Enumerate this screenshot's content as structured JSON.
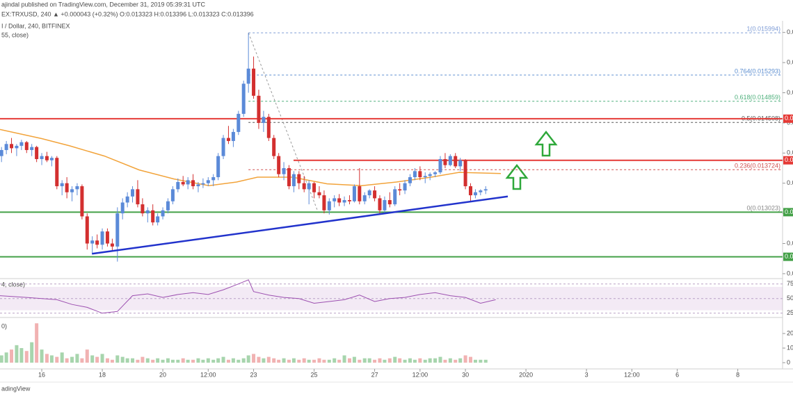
{
  "header": {
    "publisher": "ajindal published on TradingView.com, December 31, 2019 05:39:31 UTC",
    "symbol_line": "EX:TRXUSD, 240  ▲ +0.000043 (+0.32%)  O:0.013323  H:0.013396  L:0.013323  C:0.013396"
  },
  "chart_data": {
    "type": "candlestick",
    "title": "I / Dollar, 240, BITFINEX",
    "subtitle": "55, close)",
    "up_color": "#5b8ad8",
    "down_color": "#d32f2f",
    "xlim": [
      14.62,
      40.48
    ],
    "xticks": [
      16,
      18,
      20,
      {
        "value": 21.5,
        "label": "12:00"
      },
      23,
      25,
      27,
      {
        "value": 28.5,
        "label": "12:00"
      },
      30,
      {
        "value": 32,
        "label": "2020"
      },
      {
        "value": 34,
        "label": "3"
      },
      {
        "value": 35.5,
        "label": "12:00"
      },
      {
        "value": 37,
        "label": "6"
      },
      {
        "value": 39,
        "label": "8"
      }
    ],
    "ylim": [
      0.01193,
      0.0161
    ],
    "yticks": [
      {
        "value": 0.012,
        "label": "0.0"
      },
      {
        "value": 0.0125,
        "label": "0.0"
      },
      {
        "value": 0.013,
        "label": "0.0"
      },
      {
        "value": 0.0135,
        "label": "0.0"
      },
      {
        "value": 0.014,
        "label": "0.0"
      },
      {
        "value": 0.0145,
        "label": "0.0"
      },
      {
        "value": 0.015,
        "label": "0.0"
      },
      {
        "value": 0.0155,
        "label": "0.0"
      },
      {
        "value": 0.016,
        "label": "0.0"
      }
    ],
    "candles": [
      [
        14.67,
        0.01395,
        0.0141,
        0.01385,
        0.01405
      ],
      [
        14.83,
        0.01405,
        0.0142,
        0.01398,
        0.01415
      ],
      [
        15.0,
        0.01415,
        0.01425,
        0.014,
        0.01408
      ],
      [
        15.17,
        0.01408,
        0.01415,
        0.01395,
        0.01412
      ],
      [
        15.33,
        0.01412,
        0.01422,
        0.01405,
        0.01418
      ],
      [
        15.5,
        0.01418,
        0.0142,
        0.014,
        0.01405
      ],
      [
        15.67,
        0.01405,
        0.01415,
        0.01395,
        0.0141
      ],
      [
        15.83,
        0.0141,
        0.01412,
        0.01385,
        0.0139
      ],
      [
        16.0,
        0.0139,
        0.014,
        0.0138,
        0.01395
      ],
      [
        16.17,
        0.01395,
        0.01402,
        0.01385,
        0.01388
      ],
      [
        16.33,
        0.01388,
        0.01395,
        0.01378,
        0.01392
      ],
      [
        16.5,
        0.01392,
        0.01395,
        0.0134,
        0.01345
      ],
      [
        16.67,
        0.01345,
        0.01355,
        0.0133,
        0.0135
      ],
      [
        16.83,
        0.0135,
        0.0136,
        0.01325,
        0.01335
      ],
      [
        17.0,
        0.01335,
        0.01345,
        0.0132,
        0.0134
      ],
      [
        17.17,
        0.0134,
        0.0135,
        0.0133,
        0.01345
      ],
      [
        17.33,
        0.01345,
        0.01348,
        0.0129,
        0.01295
      ],
      [
        17.5,
        0.01295,
        0.013,
        0.0124,
        0.0125
      ],
      [
        17.67,
        0.0125,
        0.01262,
        0.01232,
        0.01255
      ],
      [
        17.83,
        0.01255,
        0.01265,
        0.01242,
        0.01248
      ],
      [
        18.0,
        0.01248,
        0.01275,
        0.0124,
        0.0127
      ],
      [
        18.17,
        0.0127,
        0.01275,
        0.01245,
        0.0125
      ],
      [
        18.33,
        0.0125,
        0.01258,
        0.01238,
        0.01245
      ],
      [
        18.5,
        0.01245,
        0.0131,
        0.0122,
        0.013
      ],
      [
        18.67,
        0.013,
        0.01325,
        0.0129,
        0.01318
      ],
      [
        18.83,
        0.01318,
        0.01335,
        0.0131,
        0.01328
      ],
      [
        19.0,
        0.01328,
        0.01345,
        0.01318,
        0.0134
      ],
      [
        19.17,
        0.0134,
        0.01355,
        0.0131,
        0.01315
      ],
      [
        19.33,
        0.01315,
        0.01325,
        0.01295,
        0.013
      ],
      [
        19.5,
        0.013,
        0.0131,
        0.01285,
        0.01305
      ],
      [
        19.67,
        0.01305,
        0.01315,
        0.0128,
        0.01285
      ],
      [
        19.83,
        0.01285,
        0.013,
        0.0128,
        0.01295
      ],
      [
        20.0,
        0.01295,
        0.0131,
        0.0129,
        0.01305
      ],
      [
        20.17,
        0.01305,
        0.01325,
        0.013,
        0.0132
      ],
      [
        20.33,
        0.0132,
        0.01345,
        0.01315,
        0.0134
      ],
      [
        20.5,
        0.0134,
        0.01358,
        0.01335,
        0.01352
      ],
      [
        20.67,
        0.01352,
        0.01362,
        0.01345,
        0.01348
      ],
      [
        20.83,
        0.01348,
        0.0136,
        0.0134,
        0.01355
      ],
      [
        21.0,
        0.01355,
        0.01365,
        0.0134,
        0.01345
      ],
      [
        21.17,
        0.01345,
        0.01352,
        0.01335,
        0.01348
      ],
      [
        21.33,
        0.01348,
        0.01358,
        0.01342,
        0.0135
      ],
      [
        21.5,
        0.0135,
        0.0136,
        0.01345,
        0.01355
      ],
      [
        21.67,
        0.01355,
        0.01365,
        0.01345,
        0.0136
      ],
      [
        21.83,
        0.0136,
        0.014,
        0.01355,
        0.01395
      ],
      [
        22.0,
        0.01395,
        0.0143,
        0.0139,
        0.01425
      ],
      [
        22.17,
        0.01425,
        0.01445,
        0.01415,
        0.0142
      ],
      [
        22.33,
        0.0142,
        0.0144,
        0.0141,
        0.01435
      ],
      [
        22.5,
        0.01435,
        0.0147,
        0.0143,
        0.01465
      ],
      [
        22.67,
        0.01465,
        0.0152,
        0.0146,
        0.01515
      ],
      [
        22.83,
        0.01515,
        0.01599,
        0.015,
        0.0154
      ],
      [
        23.0,
        0.0154,
        0.0156,
        0.0149,
        0.01495
      ],
      [
        23.17,
        0.01495,
        0.01505,
        0.0144,
        0.0145
      ],
      [
        23.33,
        0.0145,
        0.0147,
        0.01435,
        0.0146
      ],
      [
        23.5,
        0.0146,
        0.01465,
        0.0142,
        0.01425
      ],
      [
        23.67,
        0.01425,
        0.0143,
        0.0139,
        0.01395
      ],
      [
        23.83,
        0.01395,
        0.014,
        0.0136,
        0.01365
      ],
      [
        24.0,
        0.01365,
        0.01385,
        0.01355,
        0.01375
      ],
      [
        24.17,
        0.01375,
        0.0138,
        0.0134,
        0.01345
      ],
      [
        24.33,
        0.01345,
        0.0137,
        0.01335,
        0.01365
      ],
      [
        24.5,
        0.01365,
        0.0137,
        0.0134,
        0.0135
      ],
      [
        24.67,
        0.0135,
        0.01362,
        0.01335,
        0.0134
      ],
      [
        24.83,
        0.0134,
        0.01355,
        0.01315,
        0.0135
      ],
      [
        25.0,
        0.0135,
        0.01352,
        0.01325,
        0.01335
      ],
      [
        25.17,
        0.01335,
        0.01345,
        0.01325,
        0.0133
      ],
      [
        25.33,
        0.0133,
        0.01338,
        0.013,
        0.01305
      ],
      [
        25.5,
        0.01305,
        0.01325,
        0.01298,
        0.0132
      ],
      [
        25.67,
        0.0132,
        0.0133,
        0.0131,
        0.01325
      ],
      [
        25.83,
        0.01325,
        0.01332,
        0.01312,
        0.01318
      ],
      [
        26.0,
        0.01318,
        0.01328,
        0.01312,
        0.01322
      ],
      [
        26.17,
        0.01322,
        0.0133,
        0.01315,
        0.0132
      ],
      [
        26.33,
        0.0132,
        0.01348,
        0.01318,
        0.01345
      ],
      [
        26.5,
        0.01345,
        0.01375,
        0.01315,
        0.0132
      ],
      [
        26.67,
        0.0132,
        0.01335,
        0.01315,
        0.0133
      ],
      [
        26.83,
        0.0133,
        0.0134,
        0.01325,
        0.01338
      ],
      [
        27.0,
        0.01338,
        0.01345,
        0.0132,
        0.01325
      ],
      [
        27.17,
        0.01325,
        0.0133,
        0.013,
        0.01305
      ],
      [
        27.33,
        0.01305,
        0.01328,
        0.013,
        0.01322
      ],
      [
        27.5,
        0.01322,
        0.01335,
        0.0131,
        0.01315
      ],
      [
        27.67,
        0.01315,
        0.01345,
        0.01312,
        0.0134
      ],
      [
        27.83,
        0.0134,
        0.0135,
        0.0133,
        0.01338
      ],
      [
        28.0,
        0.01338,
        0.01355,
        0.01332,
        0.0135
      ],
      [
        28.17,
        0.0135,
        0.01365,
        0.01345,
        0.0136
      ],
      [
        28.33,
        0.0136,
        0.01375,
        0.01355,
        0.0137
      ],
      [
        28.5,
        0.0137,
        0.01378,
        0.01355,
        0.0136
      ],
      [
        28.67,
        0.0136,
        0.01368,
        0.0135,
        0.01362
      ],
      [
        28.83,
        0.01362,
        0.01368,
        0.01355,
        0.01365
      ],
      [
        29.0,
        0.01365,
        0.0137,
        0.0136,
        0.01368
      ],
      [
        29.17,
        0.01368,
        0.01395,
        0.01365,
        0.0139
      ],
      [
        29.33,
        0.0139,
        0.014,
        0.01375,
        0.0138
      ],
      [
        29.5,
        0.0138,
        0.01398,
        0.01378,
        0.01395
      ],
      [
        29.67,
        0.01395,
        0.014,
        0.01375,
        0.01378
      ],
      [
        29.83,
        0.01378,
        0.01392,
        0.0137,
        0.01388
      ],
      [
        30.0,
        0.01388,
        0.0139,
        0.0134,
        0.01345
      ],
      [
        30.17,
        0.01345,
        0.0135,
        0.0132,
        0.0133
      ],
      [
        30.33,
        0.0133,
        0.0134,
        0.01325,
        0.01335
      ],
      [
        30.5,
        0.01335,
        0.0134,
        0.0133,
        0.01338
      ],
      [
        30.67,
        0.01338,
        0.01345,
        0.01332,
        0.0134
      ]
    ],
    "ma": {
      "color": "#f2a33a",
      "x": [
        14.62,
        16,
        16.92,
        18.07,
        19.22,
        20.37,
        21.52,
        22.44,
        23.13,
        24.28,
        25.43,
        26.57,
        27.72,
        28.87,
        29.79,
        31.17
      ],
      "values": [
        0.01439,
        0.01424,
        0.01412,
        0.01395,
        0.01372,
        0.01357,
        0.01346,
        0.01352,
        0.0136,
        0.0136,
        0.01349,
        0.01346,
        0.01352,
        0.0136,
        0.01368,
        0.01366
      ]
    },
    "levels": [
      {
        "value": 0.01457,
        "color": "#e53935",
        "label": "0.0"
      },
      {
        "value": 0.01388,
        "color": "#e53935",
        "from": 24.32,
        "label": "0.0"
      },
      {
        "value": 0.01302,
        "color": "#43a047",
        "label": "0.0"
      },
      {
        "value": 0.01228,
        "color": "#43a047",
        "label": "0.0"
      }
    ],
    "fib": {
      "start": 22.83,
      "levels": [
        {
          "value": 0.015994,
          "label": "1(0.015994)",
          "color": "#7e9cd6"
        },
        {
          "value": 0.015293,
          "label": "0.764(0.015293)",
          "color": "#5c8ed0"
        },
        {
          "value": 0.014859,
          "label": "0.618(0.014859)",
          "color": "#4caf7a"
        },
        {
          "value": 0.014508,
          "label": "0.5(0.014508)",
          "color": "#555555"
        },
        {
          "value": 0.013724,
          "label": "0.236(0.013724)",
          "color": "#d05050"
        },
        {
          "value": 0.013023,
          "label": "0(0.013023)",
          "color": "#888888"
        }
      ]
    },
    "trendline": {
      "color": "#2233cc",
      "x": [
        17.66,
        31.4
      ],
      "values": [
        0.01233,
        0.01328
      ]
    },
    "rsi": {
      "label": "4, close)",
      "color": "#9c4fb0",
      "ylim": [
        20,
        83
      ],
      "yticks": [
        25,
        50,
        75
      ],
      "band": [
        30,
        70
      ],
      "x": [
        14.62,
        15.5,
        16.5,
        17,
        17.5,
        18,
        18.5,
        19,
        19.5,
        20,
        20.5,
        21,
        21.5,
        22,
        22.5,
        22.83,
        23,
        23.5,
        24,
        24.5,
        25,
        25.5,
        26,
        26.5,
        27,
        27.5,
        28,
        28.5,
        29,
        29.5,
        30,
        30.5,
        31
      ],
      "values": [
        55,
        52,
        48,
        40,
        35,
        25,
        28,
        55,
        58,
        52,
        57,
        60,
        57,
        65,
        75,
        82,
        62,
        56,
        52,
        50,
        42,
        45,
        48,
        56,
        45,
        50,
        52,
        57,
        60,
        55,
        52,
        42,
        48
      ]
    },
    "volume": {
      "label": "0)",
      "ylim": [
        -3.8,
        30.5
      ],
      "yticks": [
        0,
        10,
        20
      ],
      "values": [
        5,
        7,
        9,
        12,
        10,
        8,
        14,
        27,
        9,
        6,
        5,
        4,
        7,
        3,
        4,
        6,
        3,
        9,
        5,
        4,
        6,
        3,
        2,
        5,
        4,
        3,
        3,
        2,
        4,
        3,
        2,
        3,
        2,
        3,
        2,
        2,
        3,
        2,
        2,
        3,
        2,
        3,
        2,
        3,
        4,
        2,
        3,
        2,
        3,
        5,
        6,
        4,
        3,
        4,
        3,
        2,
        3,
        2,
        3,
        2,
        3,
        2,
        2,
        3,
        2,
        2,
        3,
        2,
        5,
        3,
        4,
        2,
        3,
        3,
        2,
        3,
        2,
        3,
        4,
        3,
        2,
        3,
        2,
        3,
        2,
        3,
        3,
        4,
        2,
        3,
        2,
        3,
        5,
        4,
        2,
        2,
        2
      ]
    }
  },
  "footer": "adingView"
}
